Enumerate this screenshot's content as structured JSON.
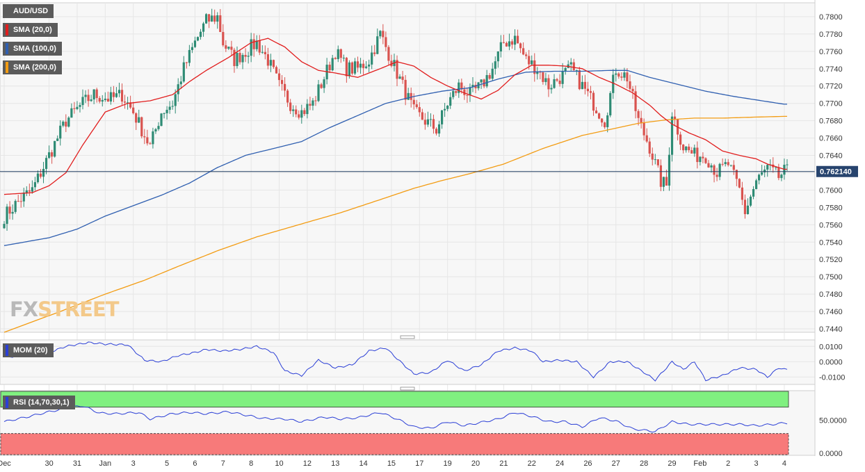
{
  "colors": {
    "up": "#2e8b74",
    "down": "#d9534f",
    "sma20": "#e11d1d",
    "sma100": "#2f5fb0",
    "sma200": "#f39c12",
    "momentum": "#2b3fd6",
    "rsi": "#2b3fd6",
    "price_line": "#1e3a5f",
    "rsi_overbought_fill": "#80f080",
    "rsi_oversold_fill": "#f77a7a",
    "last_price_bg": "#27446e"
  },
  "indicators": {
    "symbol": "AUD/USD",
    "sma20": "SMA (20,0)",
    "sma100": "SMA (100,0)",
    "sma200": "SMA (200,0)",
    "momentum": "MOM (20)",
    "rsi": "RSI (14,70,30,1)"
  },
  "watermark": {
    "part1": "FX",
    "part2": "STREET"
  },
  "last_price": "0.762140",
  "chart_data": [
    {
      "type": "candlestick",
      "panel": "price",
      "ylim": [
        0.7436,
        0.7816
      ],
      "y_ticks": [
        "0.7800",
        "0.7780",
        "0.7760",
        "0.7740",
        "0.7720",
        "0.7700",
        "0.7680",
        "0.7660",
        "0.7640",
        "0.7620",
        "0.7600",
        "0.7580",
        "0.7560",
        "0.7540",
        "0.7520",
        "0.7500",
        "0.7480",
        "0.7460",
        "0.7440"
      ],
      "x_ticks": [
        "Dec",
        "30",
        "31",
        "Jan",
        "3",
        "5",
        "6",
        "7",
        "8",
        "10",
        "12",
        "13",
        "14",
        "15",
        "17",
        "19",
        "20",
        "21",
        "22",
        "24",
        "26",
        "27",
        "28",
        "29",
        "Feb",
        "2",
        "3",
        "4"
      ],
      "x_tick_index": [
        0,
        16,
        26,
        36,
        46,
        58,
        68,
        78,
        88,
        98,
        108,
        118,
        128,
        138,
        148,
        158,
        168,
        178,
        188,
        198,
        208,
        218,
        228,
        238,
        248,
        258,
        268,
        278
      ],
      "series_close_anchors": [
        [
          0,
          0.757
        ],
        [
          6,
          0.759
        ],
        [
          10,
          0.76
        ],
        [
          16,
          0.764
        ],
        [
          22,
          0.768
        ],
        [
          28,
          0.77
        ],
        [
          32,
          0.771
        ],
        [
          38,
          0.7705
        ],
        [
          42,
          0.771
        ],
        [
          46,
          0.769
        ],
        [
          52,
          0.765
        ],
        [
          56,
          0.769
        ],
        [
          60,
          0.77
        ],
        [
          64,
          0.774
        ],
        [
          68,
          0.777
        ],
        [
          72,
          0.7795
        ],
        [
          76,
          0.78
        ],
        [
          78,
          0.777
        ],
        [
          82,
          0.775
        ],
        [
          86,
          0.776
        ],
        [
          90,
          0.777
        ],
        [
          94,
          0.775
        ],
        [
          98,
          0.772
        ],
        [
          102,
          0.77
        ],
        [
          106,
          0.769
        ],
        [
          110,
          0.77
        ],
        [
          114,
          0.773
        ],
        [
          118,
          0.776
        ],
        [
          122,
          0.774
        ],
        [
          126,
          0.774
        ],
        [
          130,
          0.775
        ],
        [
          134,
          0.778
        ],
        [
          138,
          0.775
        ],
        [
          142,
          0.772
        ],
        [
          146,
          0.769
        ],
        [
          150,
          0.768
        ],
        [
          154,
          0.767
        ],
        [
          158,
          0.77
        ],
        [
          162,
          0.772
        ],
        [
          166,
          0.771
        ],
        [
          170,
          0.772
        ],
        [
          174,
          0.774
        ],
        [
          178,
          0.777
        ],
        [
          182,
          0.7775
        ],
        [
          186,
          0.775
        ],
        [
          190,
          0.774
        ],
        [
          194,
          0.772
        ],
        [
          198,
          0.773
        ],
        [
          202,
          0.774
        ],
        [
          206,
          0.772
        ],
        [
          210,
          0.77
        ],
        [
          214,
          0.768
        ],
        [
          218,
          0.774
        ],
        [
          222,
          0.773
        ],
        [
          226,
          0.768
        ],
        [
          230,
          0.765
        ],
        [
          234,
          0.761
        ],
        [
          236,
          0.7605
        ],
        [
          238,
          0.769
        ],
        [
          242,
          0.765
        ],
        [
          246,
          0.764
        ],
        [
          250,
          0.764
        ],
        [
          254,
          0.762
        ],
        [
          258,
          0.763
        ],
        [
          262,
          0.76
        ],
        [
          264,
          0.7575
        ],
        [
          268,
          0.761
        ],
        [
          272,
          0.7625
        ],
        [
          276,
          0.7615
        ],
        [
          278,
          0.7621
        ]
      ],
      "sma20_anchors": [
        [
          0,
          0.7595
        ],
        [
          10,
          0.7597
        ],
        [
          16,
          0.7605
        ],
        [
          22,
          0.762
        ],
        [
          28,
          0.7652
        ],
        [
          36,
          0.769
        ],
        [
          44,
          0.77
        ],
        [
          52,
          0.7703
        ],
        [
          60,
          0.771
        ],
        [
          66,
          0.7725
        ],
        [
          72,
          0.7738
        ],
        [
          80,
          0.7753
        ],
        [
          88,
          0.777
        ],
        [
          94,
          0.7775
        ],
        [
          100,
          0.7765
        ],
        [
          106,
          0.7748
        ],
        [
          112,
          0.7738
        ],
        [
          118,
          0.7735
        ],
        [
          126,
          0.773
        ],
        [
          134,
          0.774
        ],
        [
          140,
          0.7748
        ],
        [
          146,
          0.7743
        ],
        [
          152,
          0.773
        ],
        [
          158,
          0.772
        ],
        [
          164,
          0.7712
        ],
        [
          170,
          0.7705
        ],
        [
          176,
          0.7715
        ],
        [
          182,
          0.7733
        ],
        [
          188,
          0.7744
        ],
        [
          194,
          0.7744
        ],
        [
          200,
          0.7743
        ],
        [
          206,
          0.774
        ],
        [
          212,
          0.773
        ],
        [
          218,
          0.7722
        ],
        [
          224,
          0.7712
        ],
        [
          230,
          0.7698
        ],
        [
          234,
          0.7686
        ],
        [
          238,
          0.7676
        ],
        [
          244,
          0.7666
        ],
        [
          250,
          0.7658
        ],
        [
          256,
          0.7645
        ],
        [
          262,
          0.764
        ],
        [
          268,
          0.7636
        ],
        [
          272,
          0.763
        ],
        [
          278,
          0.7624
        ]
      ],
      "sma100_anchors": [
        [
          0,
          0.7536
        ],
        [
          16,
          0.7545
        ],
        [
          26,
          0.7555
        ],
        [
          36,
          0.757
        ],
        [
          46,
          0.7582
        ],
        [
          56,
          0.7594
        ],
        [
          66,
          0.7608
        ],
        [
          76,
          0.7626
        ],
        [
          86,
          0.764
        ],
        [
          96,
          0.7648
        ],
        [
          106,
          0.7656
        ],
        [
          116,
          0.7672
        ],
        [
          126,
          0.7686
        ],
        [
          136,
          0.77
        ],
        [
          146,
          0.7708
        ],
        [
          156,
          0.7714
        ],
        [
          166,
          0.7718
        ],
        [
          176,
          0.7728
        ],
        [
          186,
          0.7736
        ],
        [
          196,
          0.7737
        ],
        [
          206,
          0.7737
        ],
        [
          216,
          0.7738
        ],
        [
          222,
          0.7738
        ],
        [
          230,
          0.773
        ],
        [
          240,
          0.7722
        ],
        [
          250,
          0.7714
        ],
        [
          260,
          0.7708
        ],
        [
          270,
          0.7703
        ],
        [
          278,
          0.7699
        ]
      ],
      "sma200_anchors": [
        [
          0,
          0.7436
        ],
        [
          20,
          0.746
        ],
        [
          36,
          0.748
        ],
        [
          50,
          0.7496
        ],
        [
          62,
          0.7512
        ],
        [
          76,
          0.753
        ],
        [
          90,
          0.7546
        ],
        [
          106,
          0.7561
        ],
        [
          120,
          0.7574
        ],
        [
          134,
          0.7589
        ],
        [
          146,
          0.7602
        ],
        [
          156,
          0.7611
        ],
        [
          166,
          0.7619
        ],
        [
          178,
          0.763
        ],
        [
          192,
          0.7648
        ],
        [
          206,
          0.7663
        ],
        [
          216,
          0.767
        ],
        [
          226,
          0.7677
        ],
        [
          236,
          0.7681
        ],
        [
          246,
          0.7683
        ],
        [
          256,
          0.7683
        ],
        [
          266,
          0.7684
        ],
        [
          278,
          0.7685
        ]
      ]
    },
    {
      "type": "line",
      "panel": "momentum",
      "ylim": [
        -0.0148,
        0.0142
      ],
      "y_ticks": [
        "0.0100",
        "0.0000",
        "-0.0100"
      ],
      "anchors": [
        [
          0,
          0.003
        ],
        [
          8,
          0.004
        ],
        [
          16,
          0.006
        ],
        [
          22,
          0.01
        ],
        [
          30,
          0.0125
        ],
        [
          36,
          0.0115
        ],
        [
          44,
          0.011
        ],
        [
          50,
          0.001
        ],
        [
          56,
          0.0
        ],
        [
          62,
          0.004
        ],
        [
          68,
          0.006
        ],
        [
          72,
          0.008
        ],
        [
          78,
          0.007
        ],
        [
          84,
          0.008
        ],
        [
          90,
          0.01
        ],
        [
          96,
          0.006
        ],
        [
          100,
          -0.006
        ],
        [
          106,
          -0.009
        ],
        [
          112,
          0.001
        ],
        [
          118,
          -0.004
        ],
        [
          124,
          -0.002
        ],
        [
          130,
          0.007
        ],
        [
          136,
          0.009
        ],
        [
          140,
          0.002
        ],
        [
          146,
          -0.008
        ],
        [
          152,
          -0.007
        ],
        [
          158,
          0.001
        ],
        [
          164,
          -0.006
        ],
        [
          170,
          -0.002
        ],
        [
          176,
          0.007
        ],
        [
          182,
          0.009
        ],
        [
          188,
          0.007
        ],
        [
          192,
          0.0
        ],
        [
          198,
          0.001
        ],
        [
          204,
          0.0
        ],
        [
          210,
          -0.01
        ],
        [
          216,
          0.0
        ],
        [
          222,
          0.0
        ],
        [
          228,
          -0.007
        ],
        [
          232,
          -0.012
        ],
        [
          238,
          0.0
        ],
        [
          242,
          -0.005
        ],
        [
          246,
          0.0
        ],
        [
          250,
          -0.012
        ],
        [
          256,
          -0.009
        ],
        [
          262,
          -0.004
        ],
        [
          268,
          -0.005
        ],
        [
          272,
          -0.01
        ],
        [
          276,
          -0.004
        ],
        [
          278,
          -0.005
        ]
      ]
    },
    {
      "type": "line",
      "panel": "rsi",
      "ylim": [
        -3,
        95
      ],
      "levels": {
        "overbought": 70,
        "oversold": 30
      },
      "y_ticks": [
        "50.0000",
        "0.0000"
      ],
      "anchors": [
        [
          0,
          48
        ],
        [
          8,
          55
        ],
        [
          16,
          63
        ],
        [
          24,
          70
        ],
        [
          28,
          72
        ],
        [
          34,
          61
        ],
        [
          40,
          60
        ],
        [
          48,
          62
        ],
        [
          52,
          52
        ],
        [
          60,
          60
        ],
        [
          66,
          62
        ],
        [
          72,
          60
        ],
        [
          80,
          63
        ],
        [
          86,
          58
        ],
        [
          92,
          53
        ],
        [
          100,
          52
        ],
        [
          106,
          48
        ],
        [
          114,
          55
        ],
        [
          120,
          52
        ],
        [
          126,
          54
        ],
        [
          134,
          62
        ],
        [
          140,
          52
        ],
        [
          146,
          40
        ],
        [
          152,
          38
        ],
        [
          158,
          48
        ],
        [
          164,
          42
        ],
        [
          170,
          47
        ],
        [
          176,
          52
        ],
        [
          182,
          62
        ],
        [
          188,
          56
        ],
        [
          194,
          48
        ],
        [
          200,
          48
        ],
        [
          206,
          40
        ],
        [
          212,
          54
        ],
        [
          218,
          49
        ],
        [
          224,
          37
        ],
        [
          232,
          33
        ],
        [
          238,
          48
        ],
        [
          244,
          44
        ],
        [
          250,
          44
        ],
        [
          256,
          44
        ],
        [
          262,
          44
        ],
        [
          268,
          42
        ],
        [
          274,
          44
        ],
        [
          278,
          46
        ]
      ]
    }
  ]
}
